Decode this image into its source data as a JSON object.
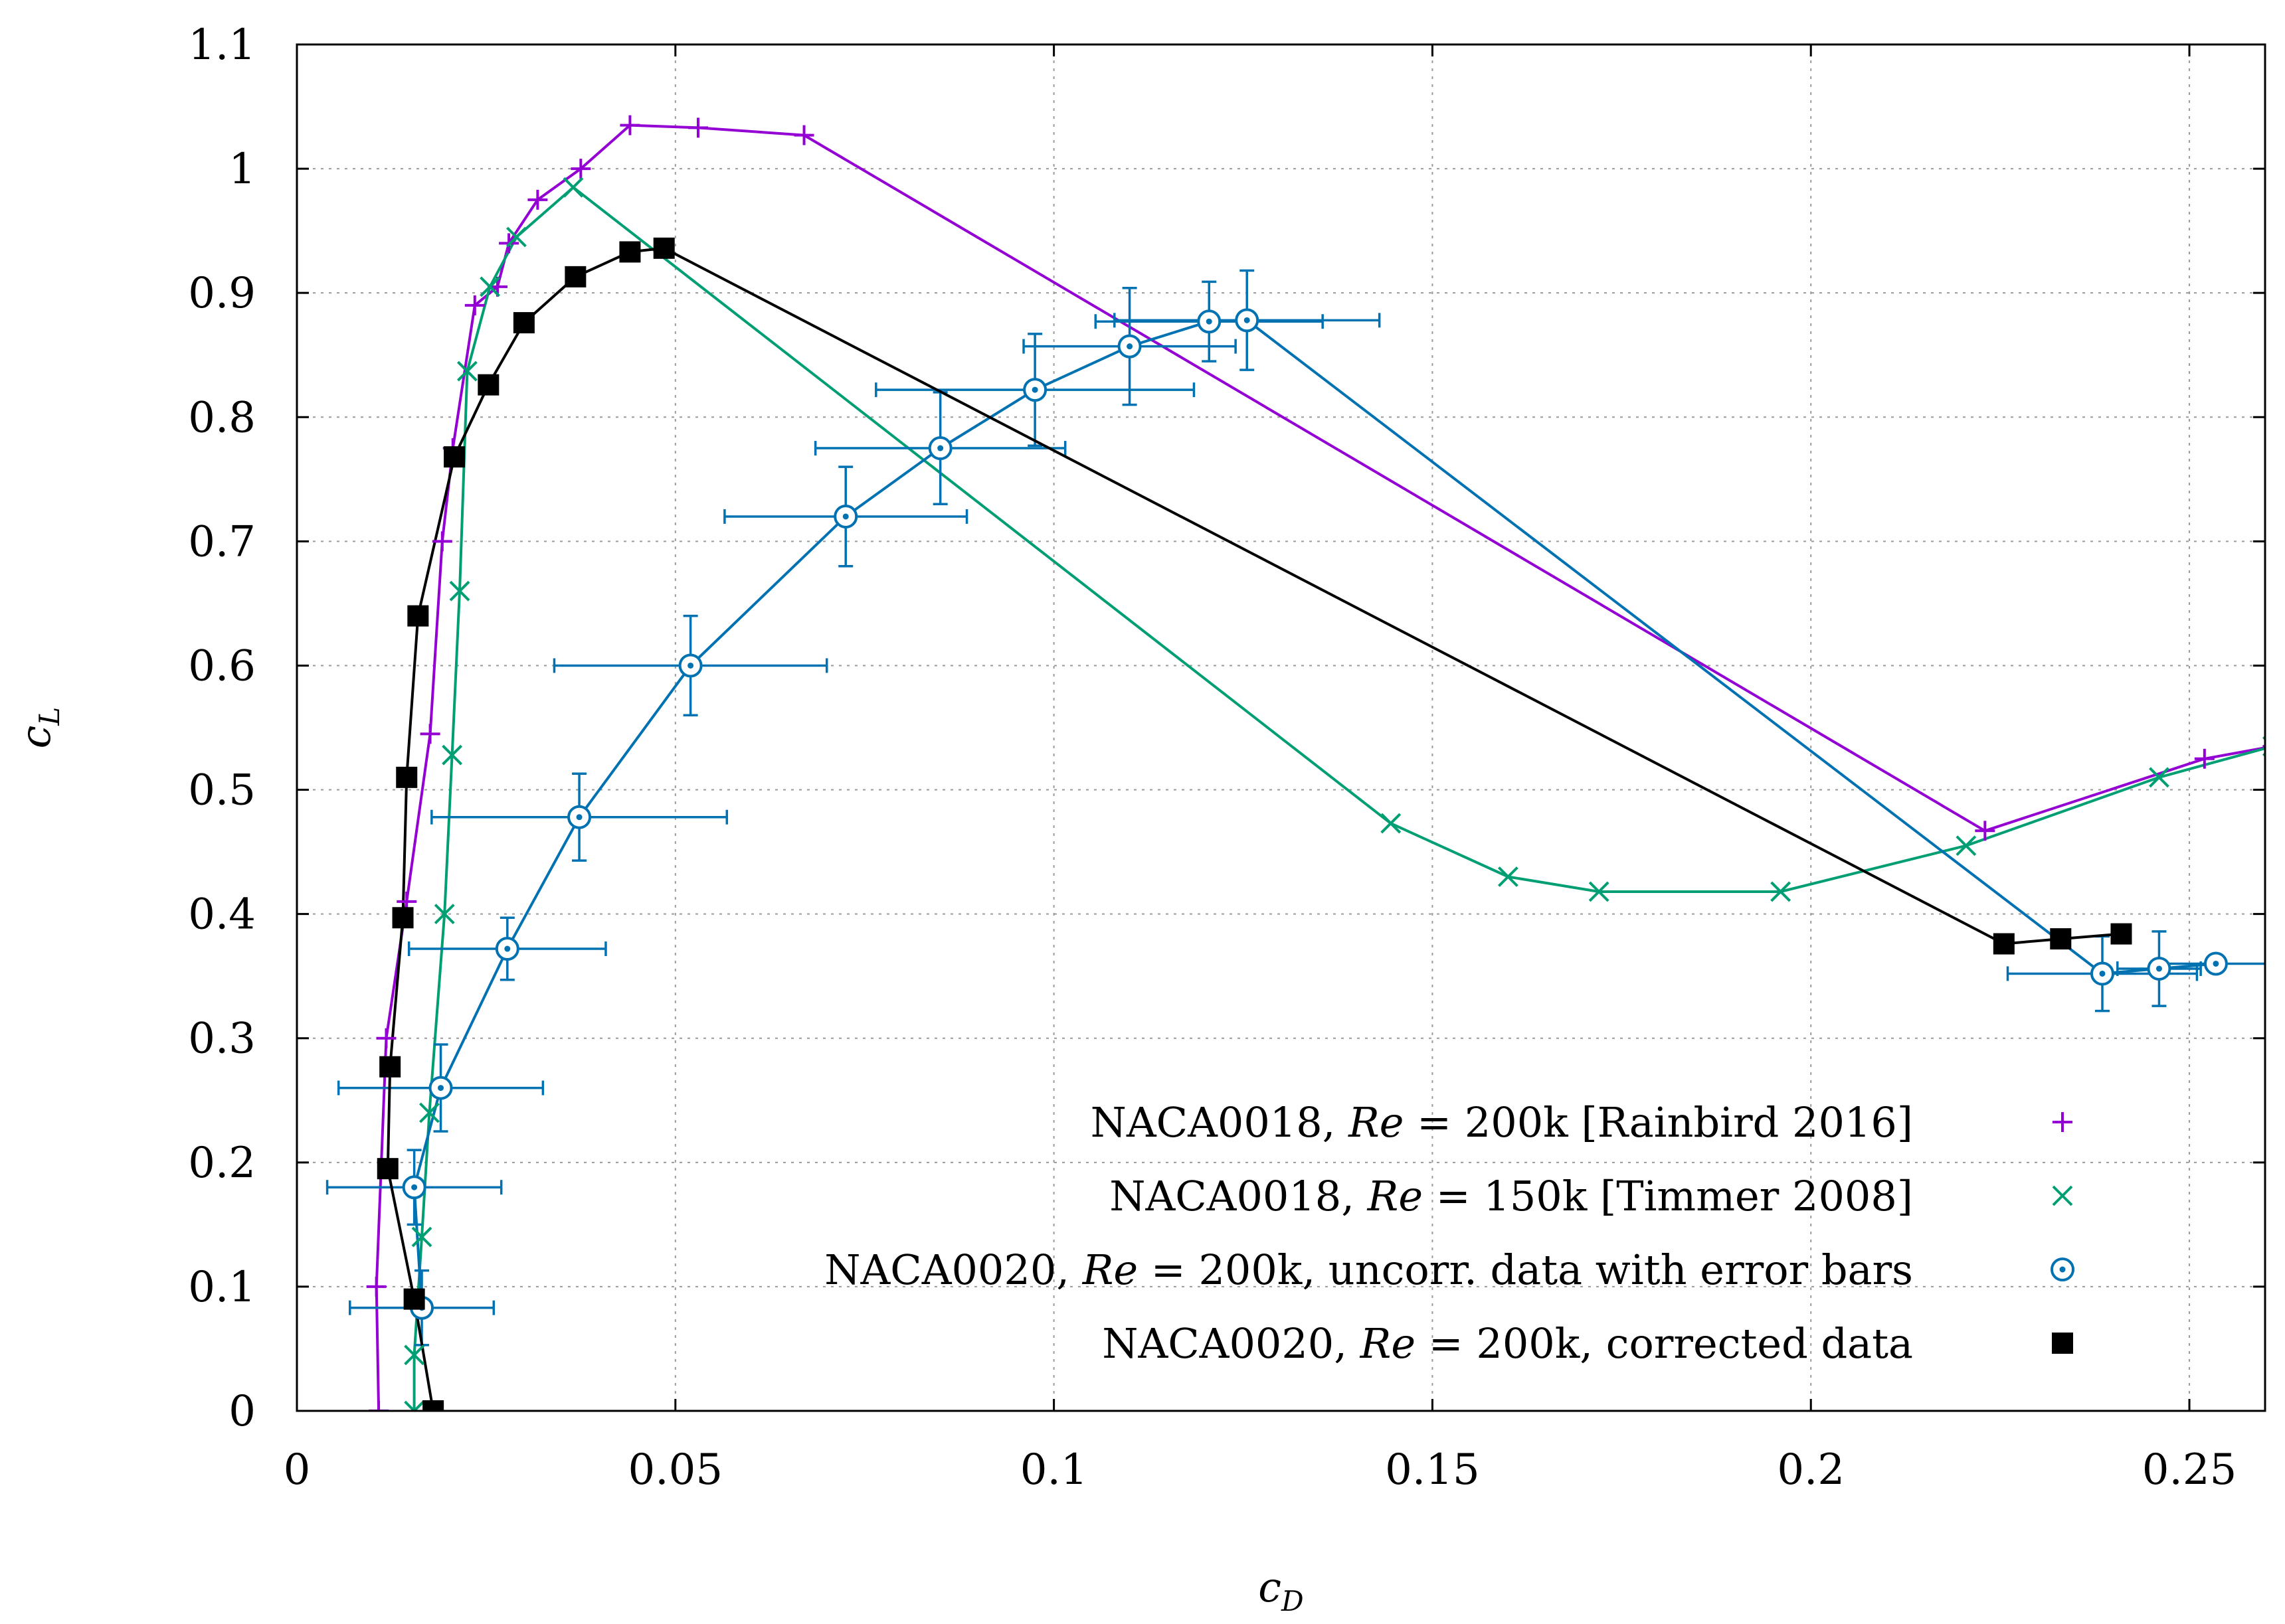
{
  "chart_data": {
    "type": "line",
    "title": "",
    "xlabel": "c_D",
    "ylabel": "c_L",
    "xlabel_parts": {
      "main": "c",
      "sub": "D"
    },
    "ylabel_parts": {
      "main": "c",
      "sub": "L"
    },
    "xlim": [
      0,
      0.26
    ],
    "ylim": [
      0,
      1.1
    ],
    "xticks": [
      0,
      0.05,
      0.1,
      0.15,
      0.2,
      0.25
    ],
    "xtick_labels": [
      "0",
      "0.05",
      "0.1",
      "0.15",
      "0.2",
      "0.25"
    ],
    "yticks": [
      0,
      0.1,
      0.2,
      0.3,
      0.4,
      0.5,
      0.6,
      0.7,
      0.8,
      0.9,
      1,
      1.1
    ],
    "ytick_labels": [
      "0",
      "0.1",
      "0.2",
      "0.3",
      "0.4",
      "0.5",
      "0.6",
      "0.7",
      "0.8",
      "0.9",
      "1",
      "1.1"
    ],
    "grid": true,
    "legend_position": "bottom-right",
    "series": [
      {
        "name": "NACA0018, Re = 200k [Rainbird 2016]",
        "legend_parts": [
          "NACA0018, ",
          "Re",
          " = 200k [Rainbird 2016]"
        ],
        "marker": "plus",
        "color": "#9400d3",
        "x": [
          0.0108,
          0.0105,
          0.0118,
          0.0145,
          0.0176,
          0.0192,
          0.0206,
          0.0235,
          0.0265,
          0.028,
          0.0318,
          0.0375,
          0.044,
          0.053,
          0.067,
          0.223,
          0.252,
          0.261
        ],
        "y": [
          0.0,
          0.1,
          0.3,
          0.41,
          0.545,
          0.7,
          0.775,
          0.89,
          0.905,
          0.94,
          0.975,
          1.0,
          1.035,
          1.033,
          1.027,
          0.467,
          0.525,
          0.535
        ]
      },
      {
        "name": "NACA0018, Re = 150k [Timmer 2008]",
        "legend_parts": [
          "NACA0018, ",
          "Re",
          " = 150k [Timmer 2008]"
        ],
        "marker": "x",
        "color": "#009e73",
        "x": [
          0.0155,
          0.0155,
          0.0165,
          0.0175,
          0.0195,
          0.0205,
          0.0215,
          0.0225,
          0.0255,
          0.029,
          0.0365,
          0.1445,
          0.16,
          0.172,
          0.196,
          0.2205,
          0.246,
          0.261
        ],
        "y": [
          0.0,
          0.045,
          0.14,
          0.24,
          0.4,
          0.528,
          0.66,
          0.837,
          0.905,
          0.945,
          0.985,
          0.473,
          0.43,
          0.418,
          0.418,
          0.455,
          0.51,
          0.535
        ]
      },
      {
        "name": "NACA0020, Re = 200k, uncorr. data with error bars",
        "legend_parts": [
          "NACA0020, ",
          "Re",
          " = 200k, uncorr. data with error bars"
        ],
        "marker": "circle-dot",
        "color": "#0072b2",
        "x": [
          0.0165,
          0.0155,
          0.019,
          0.0278,
          0.0373,
          0.052,
          0.0725,
          0.085,
          0.0975,
          0.11,
          0.1205,
          0.1255,
          0.2385,
          0.246,
          0.2535
        ],
        "y": [
          0.083,
          0.18,
          0.26,
          0.372,
          0.478,
          0.6,
          0.72,
          0.775,
          0.822,
          0.857,
          0.877,
          0.878,
          0.352,
          0.356,
          0.36
        ],
        "xerr": [
          0.0095,
          0.0115,
          0.0135,
          0.013,
          0.0195,
          0.018,
          0.016,
          0.0165,
          0.021,
          0.014,
          0.015,
          0.0175,
          0.0125,
          0.0055,
          0.0075
        ],
        "yerr": [
          0.03,
          0.03,
          0.035,
          0.025,
          0.035,
          0.04,
          0.04,
          0.045,
          0.045,
          0.047,
          0.032,
          0.04,
          0.03,
          0.03,
          0.0
        ]
      },
      {
        "name": "NACA0020, Re = 200k, corrected data",
        "legend_parts": [
          "NACA0020, ",
          "Re",
          " = 200k, corrected data"
        ],
        "marker": "square",
        "color": "#000000",
        "x": [
          0.018,
          0.0155,
          0.012,
          0.0123,
          0.014,
          0.0145,
          0.016,
          0.0208,
          0.0253,
          0.03,
          0.0368,
          0.044,
          0.0485,
          0.2255,
          0.233,
          0.241
        ],
        "y": [
          0.0,
          0.09,
          0.195,
          0.277,
          0.397,
          0.51,
          0.64,
          0.768,
          0.826,
          0.876,
          0.913,
          0.933,
          0.936,
          0.376,
          0.38,
          0.384
        ]
      }
    ]
  }
}
